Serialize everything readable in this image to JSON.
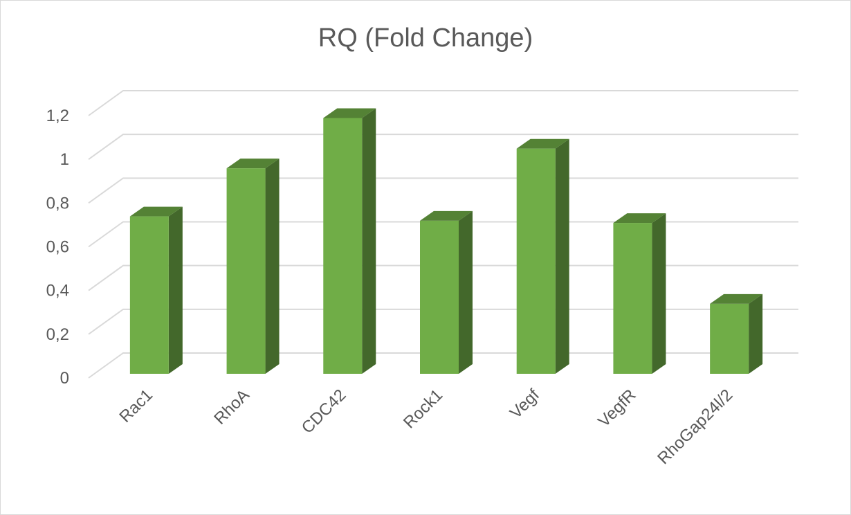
{
  "chart_data": {
    "type": "bar",
    "style": "3d-column",
    "title": "RQ (Fold Change)",
    "xlabel": "",
    "ylabel": "",
    "categories": [
      "Rac1",
      "RhoA",
      "CDC42",
      "Rock1",
      "Vegf",
      "VegfR",
      "RhoGap24l/2"
    ],
    "values": [
      0.72,
      0.94,
      1.17,
      0.7,
      1.03,
      0.69,
      0.32
    ],
    "ylim": [
      0,
      1.2
    ],
    "yticks": [
      "0",
      "0,2",
      "0,4",
      "0,6",
      "0,8",
      "1",
      "1,2"
    ],
    "grid": true,
    "legend": "none",
    "colors": {
      "front": "#70ad47",
      "top": "#548235",
      "side": "#43682b",
      "grid": "#d9d9d9",
      "text": "#595959"
    }
  }
}
